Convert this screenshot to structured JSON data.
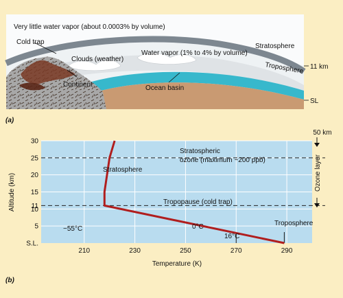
{
  "panel_a": {
    "label": "(a)",
    "vapor_note": "Very little water vapor (about 0.0003% by volume)",
    "cold_trap": "Cold trap",
    "stratosphere": "Stratosphere",
    "clouds": "Clouds (weather)",
    "water_vapor": "Water vapor (1% to 4% by volume)",
    "troposphere": "Troposphere",
    "altitude_11km": "11 km",
    "continent": "Continent",
    "ocean_basin": "Ocean basin",
    "sea_level": "SL"
  },
  "panel_b": {
    "label": "(b)",
    "ylabel": "Altitude (km)",
    "xlabel": "Temperature (K)",
    "ozone_label_line1": "Stratospheric",
    "ozone_label_line2": "ozone (maximum ~200 ppb)",
    "stratosphere": "Stratosphere",
    "tropopause": "Tropopause (cold trap)",
    "troposphere": "Troposphere",
    "ozone_layer": "Ozone layer",
    "top_altitude": "50 km",
    "temp_min": "−55°C",
    "temp_zero": "0°C",
    "temp_surface": "16°C"
  },
  "chart_data": {
    "type": "line",
    "xlabel": "Temperature (K)",
    "ylabel": "Altitude (km)",
    "xlim": [
      193,
      300
    ],
    "ylim": [
      0,
      30
    ],
    "x_ticks": [
      "210",
      "230",
      "250",
      "270",
      "290"
    ],
    "y_ticks": [
      "S.L.",
      "5",
      "10",
      "11",
      "15",
      "20",
      "25",
      "30"
    ],
    "y_tick_values": [
      0,
      5,
      10,
      11,
      15,
      20,
      25,
      30
    ],
    "series": [
      {
        "x": [
          289,
          218,
          218,
          219,
          220,
          222
        ],
        "y": [
          0,
          11,
          15,
          20,
          25,
          30
        ]
      }
    ],
    "reference_lines": [
      {
        "axis": "y",
        "value": 25,
        "style": "dashed"
      },
      {
        "axis": "y",
        "value": 11,
        "style": "dashed"
      }
    ],
    "markers": [
      {
        "x": 270,
        "label": "0°C"
      },
      {
        "x": 289,
        "label": "16°C"
      },
      {
        "x": 218,
        "label": "−55°C"
      }
    ],
    "colors": {
      "profile": "#b01e1e",
      "plot_bg": "#b9dcef",
      "page_bg": "#fbeec3"
    }
  }
}
